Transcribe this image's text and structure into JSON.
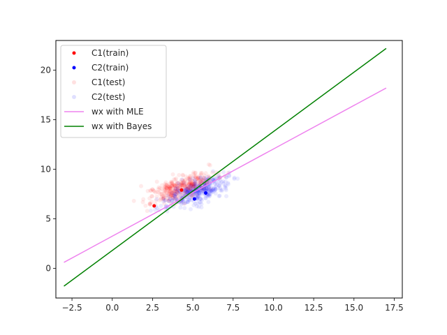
{
  "chart_data": {
    "type": "scatter",
    "title": "",
    "xlabel": "",
    "ylabel": "",
    "xlim": [
      -3.5,
      18.0
    ],
    "ylim": [
      -3.0,
      23.0
    ],
    "x_ticks": [
      -2.5,
      0.0,
      2.5,
      5.0,
      7.5,
      10.0,
      12.5,
      15.0,
      17.5
    ],
    "x_tick_labels": [
      "−2.5",
      "0.0",
      "2.5",
      "5.0",
      "7.5",
      "10.0",
      "12.5",
      "15.0",
      "17.5"
    ],
    "y_ticks": [
      0,
      5,
      10,
      15,
      20
    ],
    "y_tick_labels": [
      "0",
      "5",
      "10",
      "15",
      "20"
    ],
    "grid": false,
    "legend_position": "top-left",
    "series": [
      {
        "name": "C1(train)",
        "kind": "points",
        "color": "#ff0000",
        "opacity": 1.0,
        "points": [
          [
            2.6,
            6.3
          ],
          [
            4.3,
            7.9
          ]
        ]
      },
      {
        "name": "C2(train)",
        "kind": "points",
        "color": "#0000ff",
        "opacity": 1.0,
        "points": [
          [
            5.1,
            7.0
          ],
          [
            5.8,
            7.6
          ]
        ]
      },
      {
        "name": "C1(test)",
        "kind": "cloud",
        "color": "#ff0000",
        "opacity": 0.08,
        "cloud": {
          "count": 380,
          "center": [
            4.3,
            8.2
          ],
          "spread_major": 1.15,
          "spread_minor": 0.5,
          "slope": 0.65,
          "seed": 11
        }
      },
      {
        "name": "C2(test)",
        "kind": "cloud",
        "color": "#0000ff",
        "opacity": 0.08,
        "cloud": {
          "count": 380,
          "center": [
            5.2,
            7.7
          ],
          "spread_major": 1.15,
          "spread_minor": 0.5,
          "slope": 0.65,
          "seed": 23
        }
      },
      {
        "name": "wx with MLE",
        "kind": "line",
        "color": "#ee82ee",
        "x": [
          -3.0,
          17.0
        ],
        "y": [
          0.6,
          18.2
        ]
      },
      {
        "name": "wx with Bayes",
        "kind": "line",
        "color": "#008000",
        "x": [
          -3.0,
          17.0
        ],
        "y": [
          -1.8,
          22.2
        ]
      }
    ]
  }
}
